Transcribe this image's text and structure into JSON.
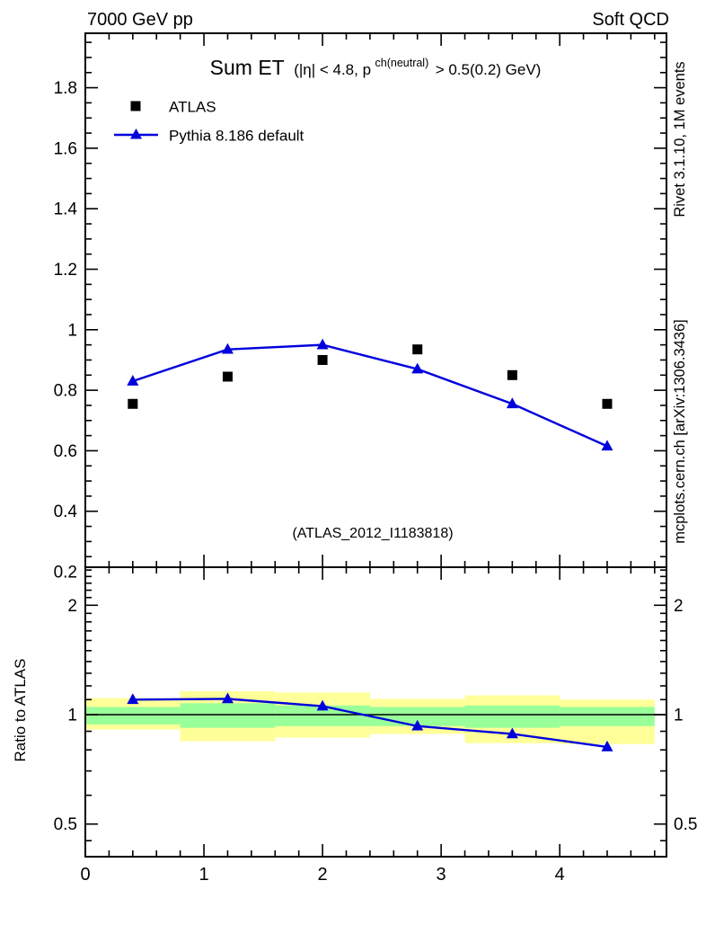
{
  "header": {
    "left": "7000 GeV pp",
    "right": "Soft QCD"
  },
  "title": {
    "main": "Sum ET",
    "pre": "(|η| < 4.8, p",
    "sup": "ch(neutral)",
    "post": "> 0.5(0.2) GeV)"
  },
  "watermark": "(ATLAS_2012_I1183818)",
  "side_notes": {
    "top": "Rivet 3.1.10,  1M events",
    "bottom": "mcplots.cern.ch [arXiv:1306.3436]"
  },
  "colors": {
    "mc_blue": "#0000dd",
    "band_yellow": "#ffff99",
    "band_green": "#99ff99",
    "watermark_gray": "#9a9a9a",
    "side_note_gray": "#888888"
  },
  "chart_data": {
    "type": "scatter",
    "x": [
      0.4,
      1.2,
      2.0,
      2.8,
      3.6,
      4.4
    ],
    "bin_edges": [
      0,
      0.8,
      1.6,
      2.4,
      3.2,
      4.0,
      4.8
    ],
    "xlim": [
      0,
      4.9
    ],
    "x_tick_labels": [
      "0",
      "1",
      "2",
      "3",
      "4"
    ],
    "x_tick_values": [
      0,
      1,
      2,
      3,
      4
    ],
    "main_panel": {
      "ylim": [
        0.215,
        1.98
      ],
      "y_tick_values": [
        0.2,
        0.4,
        0.6,
        0.8,
        1,
        1.2,
        1.4,
        1.6,
        1.8
      ],
      "grid": false,
      "legend_position": "top-left"
    },
    "series": [
      {
        "name": "ATLAS",
        "marker": "square",
        "color": "#000000",
        "line": false,
        "values": [
          0.755,
          0.845,
          0.9,
          0.935,
          0.85,
          0.755
        ]
      },
      {
        "name": "Pythia 8.186 default",
        "marker": "triangle",
        "color": "#0000dd",
        "line": true,
        "values": [
          0.83,
          0.935,
          0.95,
          0.87,
          0.755,
          0.615
        ]
      }
    ],
    "ratio_panel": {
      "ylabel": "Ratio to ATLAS",
      "scale": "log",
      "ylim": [
        0.406,
        2.545
      ],
      "y_tick_values": [
        0.5,
        1,
        2
      ],
      "y_tick_labels": [
        "0.5",
        "1",
        "2"
      ],
      "values": [
        1.1,
        1.105,
        1.055,
        0.93,
        0.885,
        0.815
      ],
      "bands": [
        {
          "x": [
            0.0,
            0.8
          ],
          "yellow": [
            0.91,
            1.11
          ],
          "green": [
            0.94,
            1.05
          ]
        },
        {
          "x": [
            0.8,
            1.6
          ],
          "yellow": [
            0.845,
            1.16
          ],
          "green": [
            0.92,
            1.075
          ]
        },
        {
          "x": [
            1.6,
            2.4
          ],
          "yellow": [
            0.865,
            1.15
          ],
          "green": [
            0.93,
            1.06
          ]
        },
        {
          "x": [
            2.4,
            3.2
          ],
          "yellow": [
            0.885,
            1.105
          ],
          "green": [
            0.93,
            1.05
          ]
        },
        {
          "x": [
            3.2,
            4.0
          ],
          "yellow": [
            0.835,
            1.13
          ],
          "green": [
            0.92,
            1.06
          ]
        },
        {
          "x": [
            4.0,
            4.8
          ],
          "yellow": [
            0.83,
            1.1
          ],
          "green": [
            0.93,
            1.05
          ]
        }
      ]
    }
  }
}
